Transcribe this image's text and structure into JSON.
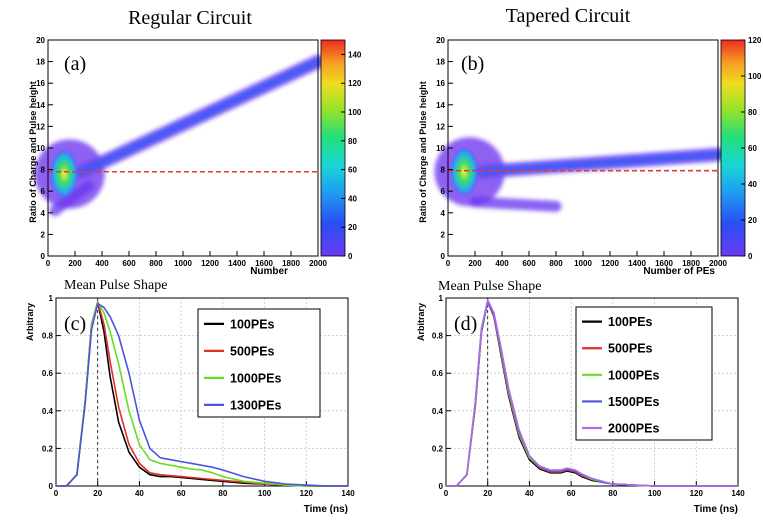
{
  "colors": {
    "ref_line": "#e53935",
    "grid": "#c8c8c8",
    "series": [
      "#000000",
      "#e0302a",
      "#66dd22",
      "#4a55dd",
      "#b06af0"
    ]
  },
  "chart_data": [
    {
      "id": "a",
      "type": "heatmap",
      "title": "Regular Circuit",
      "panel_label": "(a)",
      "xlabel": "Number",
      "ylabel": "Ratio of Charge and Pulse height",
      "xlim": [
        0,
        2000
      ],
      "ylim": [
        0,
        20
      ],
      "xticks": [
        0,
        200,
        400,
        600,
        800,
        1000,
        1200,
        1400,
        1600,
        1800,
        2000
      ],
      "yticks": [
        0,
        2,
        4,
        6,
        8,
        10,
        12,
        14,
        16,
        18,
        20
      ],
      "colorbar": {
        "min": 0,
        "max": 150,
        "ticks": [
          0,
          20,
          40,
          60,
          80,
          100,
          120,
          140
        ]
      },
      "reference_line": 7.8,
      "band": {
        "x": [
          250,
          2000
        ],
        "y": [
          7.8,
          18.0
        ],
        "width": 0.9
      },
      "secondary_band": {
        "x": [
          50,
          300
        ],
        "y": [
          4.2,
          6.5
        ]
      },
      "hotspot": {
        "x": 120,
        "y": 7.6
      }
    },
    {
      "id": "b",
      "type": "heatmap",
      "title": "Tapered Circuit",
      "panel_label": "(b)",
      "xlabel": "Number of PEs",
      "ylabel": "Ratio of Charge and Pulse height",
      "xlim": [
        0,
        2000
      ],
      "ylim": [
        0,
        20
      ],
      "xticks": [
        0,
        200,
        400,
        600,
        800,
        1000,
        1200,
        1400,
        1600,
        1800,
        2000
      ],
      "yticks": [
        0,
        2,
        4,
        6,
        8,
        10,
        12,
        14,
        16,
        18,
        20
      ],
      "colorbar": {
        "min": 0,
        "max": 120,
        "ticks": [
          0,
          20,
          40,
          60,
          80,
          100,
          120
        ]
      },
      "reference_line": 7.9,
      "band": {
        "x": [
          250,
          2000
        ],
        "y": [
          7.8,
          9.4
        ],
        "width": 0.9
      },
      "secondary_band": {
        "x": [
          200,
          800
        ],
        "y": [
          5.0,
          4.6
        ]
      },
      "hotspot": {
        "x": 120,
        "y": 7.8
      }
    },
    {
      "id": "c",
      "type": "line",
      "title": "Mean Pulse Shape",
      "panel_label": "(c)",
      "xlabel": "Time (ns)",
      "ylabel": "Arbitrary",
      "xlim": [
        0,
        140
      ],
      "ylim": [
        0,
        1.0
      ],
      "xticks": [
        0,
        20,
        40,
        60,
        80,
        100,
        120,
        140
      ],
      "yticks": [
        0.0,
        0.2,
        0.4,
        0.6,
        0.8,
        1.0
      ],
      "marker_x": 20,
      "x": [
        0,
        5,
        10,
        14,
        17,
        20,
        23,
        26,
        30,
        35,
        40,
        45,
        50,
        55,
        60,
        65,
        70,
        75,
        80,
        90,
        100,
        110,
        120,
        130,
        140
      ],
      "series": [
        {
          "name": "100PEs",
          "values": [
            0.0,
            0.0,
            0.06,
            0.45,
            0.85,
            0.98,
            0.82,
            0.58,
            0.34,
            0.18,
            0.1,
            0.06,
            0.05,
            0.05,
            0.045,
            0.04,
            0.035,
            0.03,
            0.025,
            0.015,
            0.01,
            0.005,
            0.0,
            0.0,
            0.0
          ]
        },
        {
          "name": "500PEs",
          "values": [
            0.0,
            0.0,
            0.06,
            0.45,
            0.86,
            0.98,
            0.86,
            0.66,
            0.42,
            0.22,
            0.12,
            0.07,
            0.06,
            0.055,
            0.05,
            0.045,
            0.04,
            0.035,
            0.03,
            0.02,
            0.01,
            0.005,
            0.0,
            0.0,
            0.0
          ]
        },
        {
          "name": "1000PEs",
          "values": [
            0.0,
            0.0,
            0.06,
            0.45,
            0.85,
            0.98,
            0.92,
            0.82,
            0.65,
            0.4,
            0.22,
            0.14,
            0.12,
            0.11,
            0.1,
            0.09,
            0.085,
            0.07,
            0.05,
            0.025,
            0.015,
            0.005,
            0.0,
            0.0,
            0.0
          ]
        },
        {
          "name": "1300PEs",
          "values": [
            0.0,
            0.0,
            0.06,
            0.44,
            0.83,
            0.97,
            0.95,
            0.9,
            0.8,
            0.6,
            0.35,
            0.2,
            0.15,
            0.14,
            0.13,
            0.12,
            0.11,
            0.1,
            0.085,
            0.05,
            0.025,
            0.01,
            0.005,
            0.0,
            0.0
          ]
        }
      ]
    },
    {
      "id": "d",
      "type": "line",
      "title": "Mean Pulse Shape",
      "panel_label": "(d)",
      "xlabel": "Time (ns)",
      "ylabel": "Arbitrary",
      "xlim": [
        0,
        140
      ],
      "ylim": [
        0,
        1.0
      ],
      "xticks": [
        0,
        20,
        40,
        60,
        80,
        100,
        120,
        140
      ],
      "yticks": [
        0.0,
        0.2,
        0.4,
        0.6,
        0.8,
        1.0
      ],
      "marker_x": 20,
      "x": [
        0,
        5,
        10,
        14,
        17,
        20,
        23,
        26,
        30,
        35,
        40,
        45,
        50,
        55,
        58,
        62,
        65,
        70,
        75,
        80,
        90,
        100,
        110,
        120,
        130,
        140
      ],
      "series": [
        {
          "name": "100PEs",
          "values": [
            0.0,
            0.0,
            0.06,
            0.42,
            0.82,
            0.98,
            0.9,
            0.72,
            0.48,
            0.26,
            0.14,
            0.09,
            0.07,
            0.07,
            0.08,
            0.07,
            0.05,
            0.03,
            0.02,
            0.01,
            0.005,
            0.0,
            0.0,
            0.0,
            0.0,
            0.0
          ]
        },
        {
          "name": "500PEs",
          "values": [
            0.0,
            0.0,
            0.06,
            0.43,
            0.83,
            0.98,
            0.9,
            0.73,
            0.49,
            0.27,
            0.15,
            0.095,
            0.075,
            0.075,
            0.085,
            0.075,
            0.055,
            0.035,
            0.02,
            0.01,
            0.005,
            0.0,
            0.0,
            0.0,
            0.0,
            0.0
          ]
        },
        {
          "name": "1000PEs",
          "values": [
            0.0,
            0.0,
            0.06,
            0.43,
            0.83,
            0.98,
            0.91,
            0.74,
            0.5,
            0.28,
            0.15,
            0.1,
            0.08,
            0.08,
            0.09,
            0.08,
            0.06,
            0.035,
            0.02,
            0.01,
            0.005,
            0.0,
            0.0,
            0.0,
            0.0,
            0.0
          ]
        },
        {
          "name": "1500PEs",
          "values": [
            0.0,
            0.0,
            0.06,
            0.44,
            0.84,
            0.98,
            0.91,
            0.75,
            0.51,
            0.29,
            0.16,
            0.1,
            0.08,
            0.08,
            0.09,
            0.08,
            0.06,
            0.04,
            0.02,
            0.01,
            0.005,
            0.0,
            0.0,
            0.0,
            0.0,
            0.0
          ]
        },
        {
          "name": "2000PEs",
          "values": [
            0.0,
            0.0,
            0.06,
            0.44,
            0.84,
            0.99,
            0.92,
            0.76,
            0.52,
            0.3,
            0.16,
            0.105,
            0.085,
            0.085,
            0.095,
            0.085,
            0.065,
            0.04,
            0.025,
            0.01,
            0.005,
            0.0,
            0.0,
            0.0,
            0.0,
            0.0
          ]
        }
      ]
    }
  ]
}
